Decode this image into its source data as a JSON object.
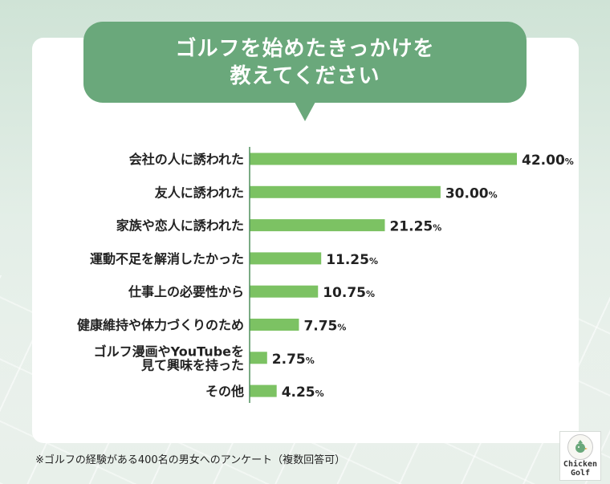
{
  "title": {
    "line1": "ゴルフを始めたきっかけを",
    "line2": "教えてください"
  },
  "chart_data": {
    "type": "bar",
    "orientation": "horizontal",
    "categories": [
      [
        "会社の人に誘われた"
      ],
      [
        "友人に誘われた"
      ],
      [
        "家族や恋人に誘われた"
      ],
      [
        "運動不足を解消したかった"
      ],
      [
        "仕事上の必要性から"
      ],
      [
        "健康維持や体力づくりのため"
      ],
      [
        "ゴルフ漫画やYouTubeを",
        "見て興味を持った"
      ],
      [
        "その他"
      ]
    ],
    "values": [
      42.0,
      30.0,
      21.25,
      11.25,
      10.75,
      7.75,
      2.75,
      4.25
    ],
    "value_labels": [
      "42.00",
      "30.00",
      "21.25",
      "11.25",
      "10.75",
      "7.75",
      "2.75",
      "4.25"
    ],
    "value_suffix": "%",
    "xlim": [
      0,
      42
    ],
    "bar_color": "#7cc263",
    "axis_color": "#4f8f5c"
  },
  "footnote": "※ゴルフの経験がある400名の男女へのアンケート（複数回答可）",
  "logo": {
    "line1": "Chicken",
    "line2": "Golf"
  }
}
